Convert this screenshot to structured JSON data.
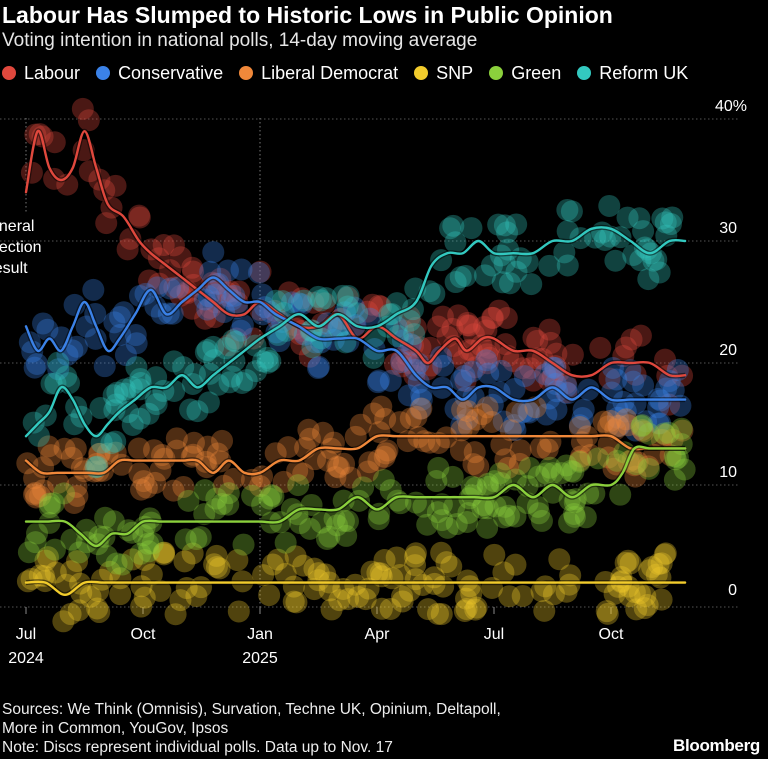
{
  "chart_data": {
    "type": "line",
    "title": "Labour Has Slumped to Historic Lows in Public Opinion",
    "subtitle": "Voting intention in national polls, 14-day moving average",
    "ylim": [
      0,
      40
    ],
    "y_ticks": [
      {
        "value": 0,
        "label": "0"
      },
      {
        "value": 10,
        "label": "10"
      },
      {
        "value": 20,
        "label": "20"
      },
      {
        "value": 30,
        "label": "30"
      },
      {
        "value": 40,
        "label": "40%"
      }
    ],
    "xlim": [
      0,
      20.6
    ],
    "x_ticks": [
      {
        "value": 0,
        "label": "Jul",
        "sublabel": "2024"
      },
      {
        "value": 3,
        "label": "Oct",
        "sublabel": ""
      },
      {
        "value": 6,
        "label": "Jan",
        "sublabel": "2025"
      },
      {
        "value": 9,
        "label": "Apr",
        "sublabel": ""
      },
      {
        "value": 12,
        "label": "Jul",
        "sublabel": ""
      },
      {
        "value": 15,
        "label": "Oct",
        "sublabel": ""
      }
    ],
    "annotations": [
      {
        "text": [
          "General",
          "election",
          "result"
        ],
        "x": 0
      },
      {
        "marker": "vertical-dotted-line",
        "x": 6
      }
    ],
    "series": [
      {
        "name": "Labour",
        "color": "#e0483d",
        "x": [
          0,
          0.3,
          0.6,
          0.9,
          1.2,
          1.5,
          1.8,
          2.1,
          2.5,
          2.9,
          3.2,
          3.6,
          4.0,
          4.4,
          4.8,
          5.2,
          5.6,
          6.0,
          6.5,
          7.0,
          7.5,
          8.0,
          8.5,
          9.0,
          9.5,
          10.0,
          10.3,
          10.6,
          11.0,
          11.3,
          11.7,
          12.0,
          12.5,
          13.0,
          13.5,
          14.0,
          14.5,
          15.0,
          15.5,
          16.0,
          16.5,
          16.9
        ],
        "values": [
          34,
          39,
          36,
          35,
          36,
          39,
          36,
          33,
          32,
          30,
          29,
          28,
          27,
          26,
          25,
          24,
          24,
          25,
          24,
          23,
          23,
          24,
          22,
          23,
          22,
          21,
          20,
          21,
          22,
          21,
          22,
          22,
          21,
          21,
          20,
          19,
          19,
          20,
          20,
          20,
          19,
          19
        ]
      },
      {
        "name": "Conservative",
        "color": "#3b82e8",
        "x": [
          0,
          0.3,
          0.6,
          0.9,
          1.2,
          1.5,
          1.8,
          2.1,
          2.4,
          2.8,
          3.2,
          3.6,
          4.0,
          4.4,
          4.8,
          5.2,
          5.6,
          6.0,
          6.4,
          7.0,
          7.5,
          8.0,
          8.5,
          9.0,
          9.5,
          10.0,
          10.4,
          10.8,
          11.2,
          11.6,
          12.0,
          12.5,
          13.0,
          13.5,
          14.0,
          14.5,
          15.0,
          15.5,
          16.0,
          16.5,
          16.9
        ],
        "values": [
          23,
          21,
          22,
          21,
          23,
          25,
          23,
          21,
          22,
          24,
          26,
          24,
          25,
          26,
          27,
          26,
          25,
          25,
          24,
          23,
          22,
          22,
          22,
          21,
          21,
          19,
          18,
          18,
          17,
          18,
          18,
          17,
          17,
          18,
          17,
          18,
          17,
          17,
          17,
          17,
          17
        ]
      },
      {
        "name": "Liberal Democrat",
        "color": "#f0883a",
        "x": [
          0,
          0.4,
          0.8,
          1.2,
          1.6,
          2.0,
          2.4,
          2.8,
          3.2,
          3.6,
          4.0,
          4.4,
          4.8,
          5.2,
          5.6,
          6.0,
          6.5,
          7.0,
          7.5,
          8.0,
          8.5,
          9.0,
          9.5,
          10.0,
          10.5,
          11.0,
          11.5,
          12.0,
          12.5,
          13.0,
          13.5,
          14.0,
          14.5,
          15.0,
          15.5,
          16.0,
          16.5,
          16.9
        ],
        "values": [
          12,
          11,
          11,
          11,
          11,
          11,
          12,
          12,
          12,
          12,
          12,
          12,
          11,
          12,
          11,
          11,
          12,
          12,
          13,
          13,
          13,
          14,
          14,
          14,
          14,
          14,
          14,
          14,
          14,
          14,
          14,
          14,
          14,
          14,
          13,
          13,
          13,
          13
        ]
      },
      {
        "name": "SNP",
        "color": "#f2cc2c",
        "x": [
          0,
          0.5,
          1.0,
          1.5,
          2.0,
          2.5,
          3.0,
          3.5,
          4.0,
          4.5,
          5.0,
          5.5,
          6.0,
          6.5,
          7.0,
          7.5,
          8.0,
          8.5,
          9.0,
          9.5,
          10.0,
          10.5,
          11.0,
          11.5,
          12.0,
          12.5,
          13.0,
          13.5,
          14.0,
          14.5,
          15.0,
          15.5,
          16.0,
          16.5,
          16.9
        ],
        "values": [
          2,
          2,
          1,
          2,
          2,
          2,
          2,
          2,
          2,
          2,
          2,
          2,
          2,
          2,
          2,
          2,
          2,
          2,
          2,
          2,
          2,
          2,
          2,
          2,
          2,
          2,
          2,
          2,
          2,
          2,
          2,
          2,
          2,
          2,
          2
        ]
      },
      {
        "name": "Green",
        "color": "#8bd03c",
        "x": [
          0,
          0.5,
          1.0,
          1.4,
          1.8,
          2.2,
          2.6,
          3.0,
          3.5,
          4.0,
          4.5,
          5.0,
          5.5,
          6.0,
          6.5,
          7.0,
          7.5,
          8.0,
          8.5,
          9.0,
          9.5,
          10.0,
          10.5,
          11.0,
          11.5,
          12.0,
          12.5,
          13.0,
          13.5,
          14.0,
          14.5,
          15.0,
          15.3,
          15.6,
          16.0,
          16.5,
          16.9
        ],
        "values": [
          7,
          7,
          7,
          6,
          5,
          6,
          6,
          7,
          7,
          7,
          7,
          7,
          7,
          7,
          7,
          8,
          8,
          8,
          9,
          8,
          9,
          9,
          9,
          9,
          9,
          9,
          10,
          9,
          10,
          9,
          10,
          10,
          11,
          13,
          13,
          13,
          13
        ]
      },
      {
        "name": "Reform UK",
        "color": "#33c9c0",
        "x": [
          0,
          0.3,
          0.6,
          0.9,
          1.2,
          1.5,
          1.8,
          2.1,
          2.4,
          2.8,
          3.2,
          3.6,
          4.0,
          4.4,
          4.8,
          5.2,
          5.6,
          6.0,
          6.5,
          7.0,
          7.5,
          8.0,
          8.5,
          9.0,
          9.5,
          10.0,
          10.4,
          10.8,
          11.2,
          11.6,
          12.0,
          12.5,
          13.0,
          13.5,
          14.0,
          14.5,
          15.0,
          15.5,
          16.0,
          16.5,
          16.9
        ],
        "values": [
          14,
          15,
          16,
          18,
          17,
          15,
          14,
          15,
          16,
          17,
          18,
          18,
          19,
          18,
          19,
          20,
          21,
          22,
          23,
          24,
          23,
          24,
          23,
          23,
          24,
          25,
          28,
          29,
          29,
          30,
          29,
          29,
          29,
          30,
          30,
          31,
          31,
          30,
          29,
          30,
          30
        ]
      }
    ],
    "poll_discs": "Discs represent individual polls"
  },
  "footer": {
    "sources": [
      "Sources: We Think (Omnisis), Survation, Techne UK, Opinium, Deltapoll,",
      "More in Common, YouGov, Ipsos",
      "Note: Discs represent individual polls. Data up to Nov. 17"
    ],
    "brand": "Bloomberg"
  }
}
